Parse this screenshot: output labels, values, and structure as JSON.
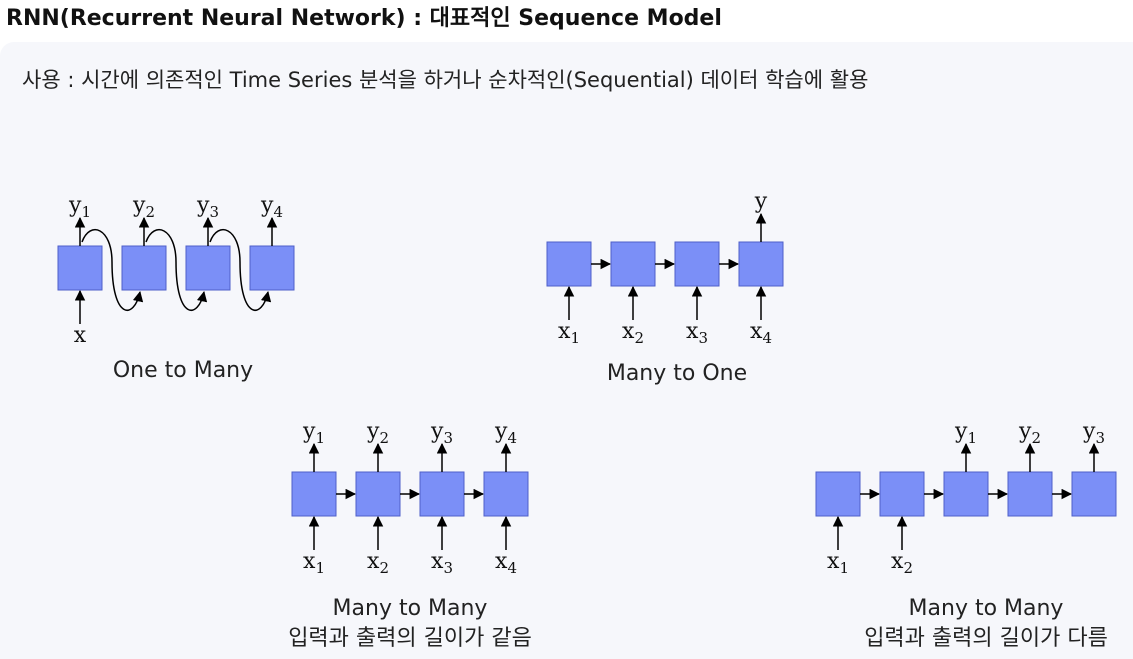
{
  "page_title": "RNN(Recurrent Neural Network) : 대표적인 Sequence Model",
  "usage": "사용 : 시간에 의존적인 Time Series 분석을 하거나 순차적인(Sequential) 데이터 학습에 활용",
  "diagrams": [
    {
      "id": "one-to-many",
      "caption": "One to Many",
      "inputs": [
        {
          "base": "x",
          "sub": ""
        }
      ],
      "outputs": [
        {
          "base": "y",
          "sub": "1"
        },
        {
          "base": "y",
          "sub": "2"
        },
        {
          "base": "y",
          "sub": "3"
        },
        {
          "base": "y",
          "sub": "4"
        }
      ]
    },
    {
      "id": "many-to-one",
      "caption": "Many to One",
      "inputs": [
        {
          "base": "x",
          "sub": "1"
        },
        {
          "base": "x",
          "sub": "2"
        },
        {
          "base": "x",
          "sub": "3"
        },
        {
          "base": "x",
          "sub": "4"
        }
      ],
      "outputs": [
        {
          "base": "y",
          "sub": ""
        }
      ]
    },
    {
      "id": "many-to-many-equal",
      "caption": "Many to Many",
      "caption_sub": "입력과 출력의 길이가 같음",
      "inputs": [
        {
          "base": "x",
          "sub": "1"
        },
        {
          "base": "x",
          "sub": "2"
        },
        {
          "base": "x",
          "sub": "3"
        },
        {
          "base": "x",
          "sub": "4"
        }
      ],
      "outputs": [
        {
          "base": "y",
          "sub": "1"
        },
        {
          "base": "y",
          "sub": "2"
        },
        {
          "base": "y",
          "sub": "3"
        },
        {
          "base": "y",
          "sub": "4"
        }
      ]
    },
    {
      "id": "many-to-many-different",
      "caption": "Many to Many",
      "caption_sub": "입력과 출력의 길이가 다름",
      "inputs": [
        {
          "base": "x",
          "sub": "1"
        },
        {
          "base": "x",
          "sub": "2"
        }
      ],
      "outputs": [
        {
          "base": "y",
          "sub": "1"
        },
        {
          "base": "y",
          "sub": "2"
        },
        {
          "base": "y",
          "sub": "3"
        }
      ]
    }
  ]
}
